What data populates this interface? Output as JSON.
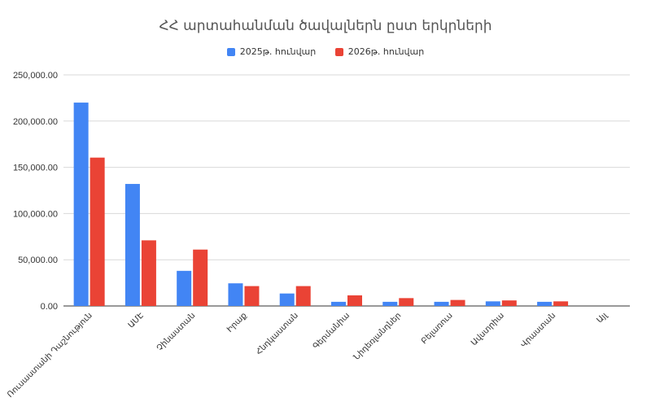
{
  "chart_data": {
    "type": "bar",
    "title": "ՀՀ արտահանման ծավալներն ըստ երկրների",
    "categories": [
      "Ռուսաստանի Դաշնություն",
      "ԱՄԷ",
      "Չինաստան",
      "Իրաք",
      "Հնդկաստան",
      "Գերմանիա",
      "Նիդեռլանդներ",
      "Բելառուս",
      "Ավստրիա",
      "Վրաստան",
      "Այլ"
    ],
    "series": [
      {
        "name": "2025թ. հունվար",
        "color": "#4285f4",
        "values": [
          220000,
          132000,
          38000,
          24500,
          13500,
          4500,
          4500,
          4500,
          5000,
          4500,
          0
        ]
      },
      {
        "name": "2026թ. հունվար",
        "color": "#ea4335",
        "values": [
          160500,
          71000,
          61000,
          21500,
          21500,
          11500,
          8500,
          6500,
          6000,
          5000,
          0
        ]
      }
    ],
    "y_ticks": [
      "0.00",
      "50,000.00",
      "100,000.00",
      "150,000.00",
      "200,000.00",
      "250,000.00"
    ],
    "ylim": [
      0,
      250000
    ],
    "grid": true,
    "legend_position": "top"
  }
}
